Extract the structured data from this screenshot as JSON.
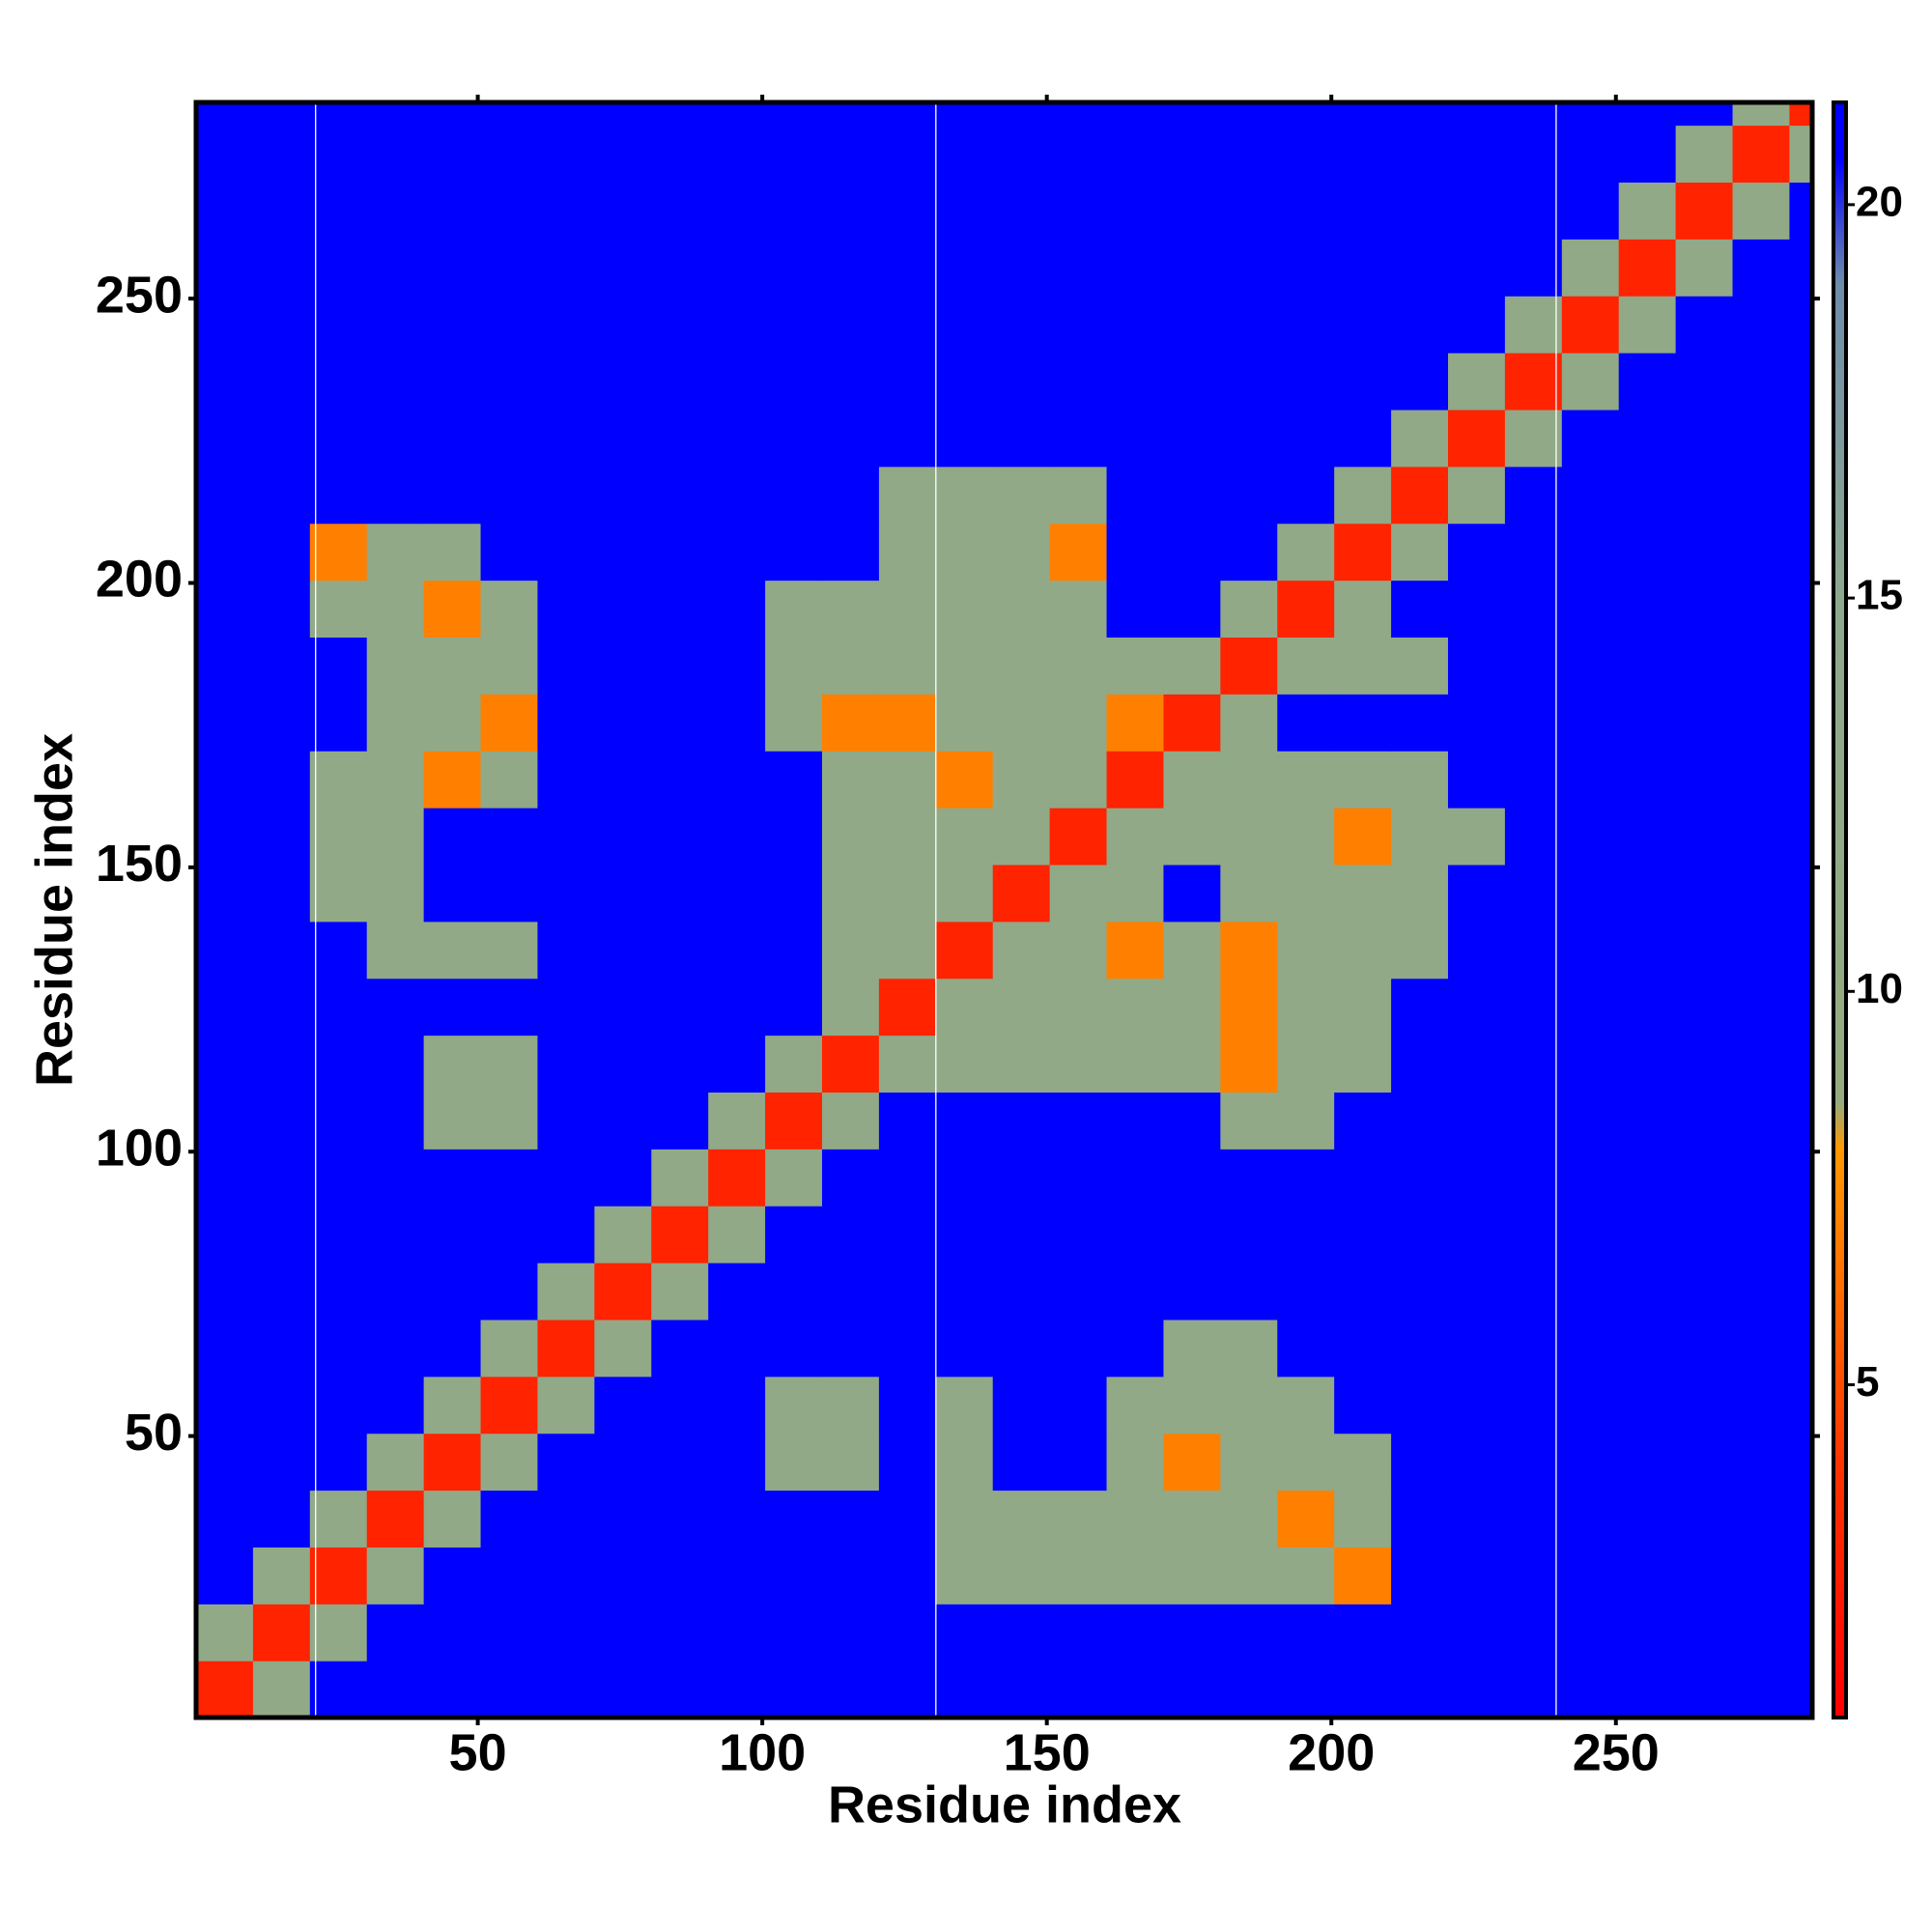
{
  "chart_data": {
    "type": "heatmap",
    "xlabel": "Residue index",
    "ylabel": "Residue index",
    "xlim": [
      0.5,
      284.5
    ],
    "ylim": [
      0.5,
      284.5
    ],
    "xticks": [
      50,
      100,
      150,
      200,
      250
    ],
    "yticks": [
      50,
      100,
      150,
      200,
      250
    ],
    "zlim": [
      0.77,
      21.3
    ],
    "zticks": [
      5,
      10,
      15,
      20
    ],
    "colorscale": [
      [
        0.77,
        "#ff0000"
      ],
      [
        4,
        "#ff3300"
      ],
      [
        8,
        "#ff9900"
      ],
      [
        8.6,
        "#94ab80"
      ],
      [
        15,
        "#8ea88e"
      ],
      [
        19,
        "#6f8caa"
      ],
      [
        20.6,
        "#0000ff"
      ],
      [
        21.3,
        "#0000ff"
      ]
    ],
    "vlines": [
      21.5,
      130.5,
      239.5
    ],
    "vline_color": "#ffffff",
    "xbins": [
      0.5,
      10.5,
      20.5,
      30.5,
      40.5,
      50.5,
      60.5,
      70.5,
      80.5,
      90.5,
      100.5,
      110.5,
      120.5,
      130.5,
      140.5,
      150.5,
      160.5,
      170.5,
      180.5,
      190.5,
      200.5,
      210.5,
      220.5,
      230.5,
      240.5,
      250.5,
      260.5,
      270.5,
      280.5,
      284.5
    ],
    "ybins": [
      0.5,
      10.5,
      20.5,
      30.5,
      40.5,
      50.5,
      60.5,
      70.5,
      80.5,
      90.5,
      100.5,
      110.5,
      120.5,
      130.5,
      140.5,
      150.5,
      160.5,
      170.5,
      180.5,
      190.5,
      200.5,
      210.5,
      220.5,
      230.5,
      240.5,
      250.5,
      260.5,
      270.5,
      280.5,
      284.5
    ],
    "z": [
      [
        3,
        12,
        21,
        21,
        21,
        21,
        21,
        21,
        21,
        21,
        21,
        21,
        21,
        21,
        21,
        21,
        21,
        21,
        21,
        21,
        21,
        21,
        21,
        21,
        21,
        21,
        21,
        21,
        21
      ],
      [
        12,
        3,
        12,
        21,
        21,
        21,
        21,
        21,
        21,
        21,
        21,
        21,
        21,
        21,
        21,
        21,
        21,
        21,
        21,
        21,
        21,
        21,
        21,
        21,
        21,
        21,
        21,
        21,
        21
      ],
      [
        21,
        12,
        3,
        12,
        21,
        21,
        21,
        21,
        21,
        21,
        21,
        21,
        21,
        12,
        12,
        12,
        12,
        12,
        12,
        12,
        7,
        21,
        21,
        21,
        21,
        21,
        21,
        21,
        21
      ],
      [
        21,
        21,
        12,
        3,
        12,
        21,
        21,
        21,
        21,
        21,
        21,
        21,
        21,
        12,
        12,
        12,
        12,
        12,
        12,
        7,
        12,
        21,
        21,
        21,
        21,
        21,
        21,
        21,
        21
      ],
      [
        21,
        21,
        21,
        12,
        3,
        12,
        21,
        21,
        21,
        21,
        12,
        12,
        21,
        12,
        21,
        21,
        12,
        7,
        12,
        12,
        12,
        21,
        21,
        21,
        21,
        21,
        21,
        21,
        21
      ],
      [
        21,
        21,
        21,
        21,
        12,
        3,
        12,
        21,
        21,
        21,
        12,
        12,
        21,
        12,
        21,
        21,
        12,
        12,
        12,
        12,
        21,
        21,
        21,
        21,
        21,
        21,
        21,
        21,
        21
      ],
      [
        21,
        21,
        21,
        21,
        21,
        12,
        3,
        12,
        21,
        21,
        21,
        21,
        21,
        21,
        21,
        21,
        21,
        12,
        12,
        21,
        21,
        21,
        21,
        21,
        21,
        21,
        21,
        21,
        21
      ],
      [
        21,
        21,
        21,
        21,
        21,
        21,
        12,
        3,
        12,
        21,
        21,
        21,
        21,
        21,
        21,
        21,
        21,
        21,
        21,
        21,
        21,
        21,
        21,
        21,
        21,
        21,
        21,
        21,
        21
      ],
      [
        21,
        21,
        21,
        21,
        21,
        21,
        21,
        12,
        3,
        12,
        21,
        21,
        21,
        21,
        21,
        21,
        21,
        21,
        21,
        21,
        21,
        21,
        21,
        21,
        21,
        21,
        21,
        21,
        21
      ],
      [
        21,
        21,
        21,
        21,
        21,
        21,
        21,
        21,
        12,
        3,
        12,
        21,
        21,
        21,
        21,
        21,
        21,
        21,
        21,
        21,
        21,
        21,
        21,
        21,
        21,
        21,
        21,
        21,
        21
      ],
      [
        21,
        21,
        21,
        21,
        12,
        12,
        21,
        21,
        21,
        12,
        3,
        12,
        21,
        21,
        21,
        21,
        21,
        21,
        12,
        12,
        21,
        21,
        21,
        21,
        21,
        21,
        21,
        21,
        21
      ],
      [
        21,
        21,
        21,
        21,
        12,
        12,
        21,
        21,
        21,
        21,
        12,
        3,
        12,
        12,
        12,
        12,
        12,
        12,
        7,
        12,
        12,
        21,
        21,
        21,
        21,
        21,
        21,
        21,
        21
      ],
      [
        21,
        21,
        21,
        21,
        21,
        21,
        21,
        21,
        21,
        21,
        21,
        12,
        3,
        12,
        12,
        12,
        12,
        12,
        7,
        12,
        12,
        21,
        21,
        21,
        21,
        21,
        21,
        21,
        21
      ],
      [
        21,
        21,
        21,
        12,
        12,
        12,
        21,
        21,
        21,
        21,
        21,
        12,
        12,
        3,
        12,
        12,
        7,
        12,
        7,
        12,
        12,
        12,
        21,
        21,
        21,
        21,
        21,
        21,
        21
      ],
      [
        21,
        21,
        12,
        12,
        21,
        21,
        21,
        21,
        21,
        21,
        21,
        12,
        12,
        12,
        3,
        12,
        12,
        21,
        12,
        12,
        12,
        12,
        21,
        21,
        21,
        21,
        21,
        21,
        21
      ],
      [
        21,
        21,
        12,
        12,
        21,
        21,
        21,
        21,
        21,
        21,
        21,
        12,
        12,
        12,
        12,
        3,
        12,
        12,
        12,
        12,
        7,
        12,
        12,
        21,
        21,
        21,
        21,
        21,
        21
      ],
      [
        21,
        21,
        12,
        12,
        7,
        12,
        21,
        21,
        21,
        21,
        21,
        12,
        12,
        7,
        12,
        12,
        3,
        12,
        12,
        12,
        12,
        12,
        21,
        21,
        21,
        21,
        21,
        21,
        21
      ],
      [
        21,
        21,
        21,
        12,
        12,
        7,
        21,
        21,
        21,
        21,
        12,
        7,
        7,
        12,
        12,
        12,
        7,
        3,
        12,
        21,
        21,
        21,
        21,
        21,
        21,
        21,
        21,
        21,
        21
      ],
      [
        21,
        21,
        21,
        12,
        12,
        12,
        21,
        21,
        21,
        21,
        12,
        12,
        12,
        12,
        12,
        12,
        12,
        12,
        3,
        12,
        12,
        12,
        21,
        21,
        21,
        21,
        21,
        21,
        21
      ],
      [
        21,
        21,
        12,
        12,
        7,
        12,
        21,
        21,
        21,
        21,
        12,
        12,
        12,
        12,
        12,
        12,
        21,
        21,
        12,
        3,
        12,
        21,
        21,
        21,
        21,
        21,
        21,
        21,
        21
      ],
      [
        21,
        21,
        7,
        12,
        12,
        21,
        21,
        21,
        21,
        21,
        21,
        21,
        12,
        12,
        12,
        7,
        21,
        21,
        21,
        12,
        3,
        12,
        21,
        21,
        21,
        21,
        21,
        21,
        21
      ],
      [
        21,
        21,
        21,
        21,
        21,
        21,
        21,
        21,
        21,
        21,
        21,
        21,
        12,
        12,
        12,
        12,
        21,
        21,
        21,
        21,
        12,
        3,
        12,
        21,
        21,
        21,
        21,
        21,
        21
      ],
      [
        21,
        21,
        21,
        21,
        21,
        21,
        21,
        21,
        21,
        21,
        21,
        21,
        21,
        21,
        21,
        21,
        21,
        21,
        21,
        21,
        21,
        12,
        3,
        12,
        21,
        21,
        21,
        21,
        21
      ],
      [
        21,
        21,
        21,
        21,
        21,
        21,
        21,
        21,
        21,
        21,
        21,
        21,
        21,
        21,
        21,
        21,
        21,
        21,
        21,
        21,
        21,
        21,
        12,
        3,
        12,
        21,
        21,
        21,
        21
      ],
      [
        21,
        21,
        21,
        21,
        21,
        21,
        21,
        21,
        21,
        21,
        21,
        21,
        21,
        21,
        21,
        21,
        21,
        21,
        21,
        21,
        21,
        21,
        21,
        12,
        3,
        12,
        21,
        21,
        21
      ],
      [
        21,
        21,
        21,
        21,
        21,
        21,
        21,
        21,
        21,
        21,
        21,
        21,
        21,
        21,
        21,
        21,
        21,
        21,
        21,
        21,
        21,
        21,
        21,
        21,
        12,
        3,
        12,
        21,
        21
      ],
      [
        21,
        21,
        21,
        21,
        21,
        21,
        21,
        21,
        21,
        21,
        21,
        21,
        21,
        21,
        21,
        21,
        21,
        21,
        21,
        21,
        21,
        21,
        21,
        21,
        21,
        12,
        3,
        12,
        21
      ],
      [
        21,
        21,
        21,
        21,
        21,
        21,
        21,
        21,
        21,
        21,
        21,
        21,
        21,
        21,
        21,
        21,
        21,
        21,
        21,
        21,
        21,
        21,
        21,
        21,
        21,
        21,
        12,
        3,
        12
      ],
      [
        21,
        21,
        21,
        21,
        21,
        21,
        21,
        21,
        21,
        21,
        21,
        21,
        21,
        21,
        21,
        21,
        21,
        21,
        21,
        21,
        21,
        21,
        21,
        21,
        21,
        21,
        21,
        12,
        3
      ]
    ]
  }
}
